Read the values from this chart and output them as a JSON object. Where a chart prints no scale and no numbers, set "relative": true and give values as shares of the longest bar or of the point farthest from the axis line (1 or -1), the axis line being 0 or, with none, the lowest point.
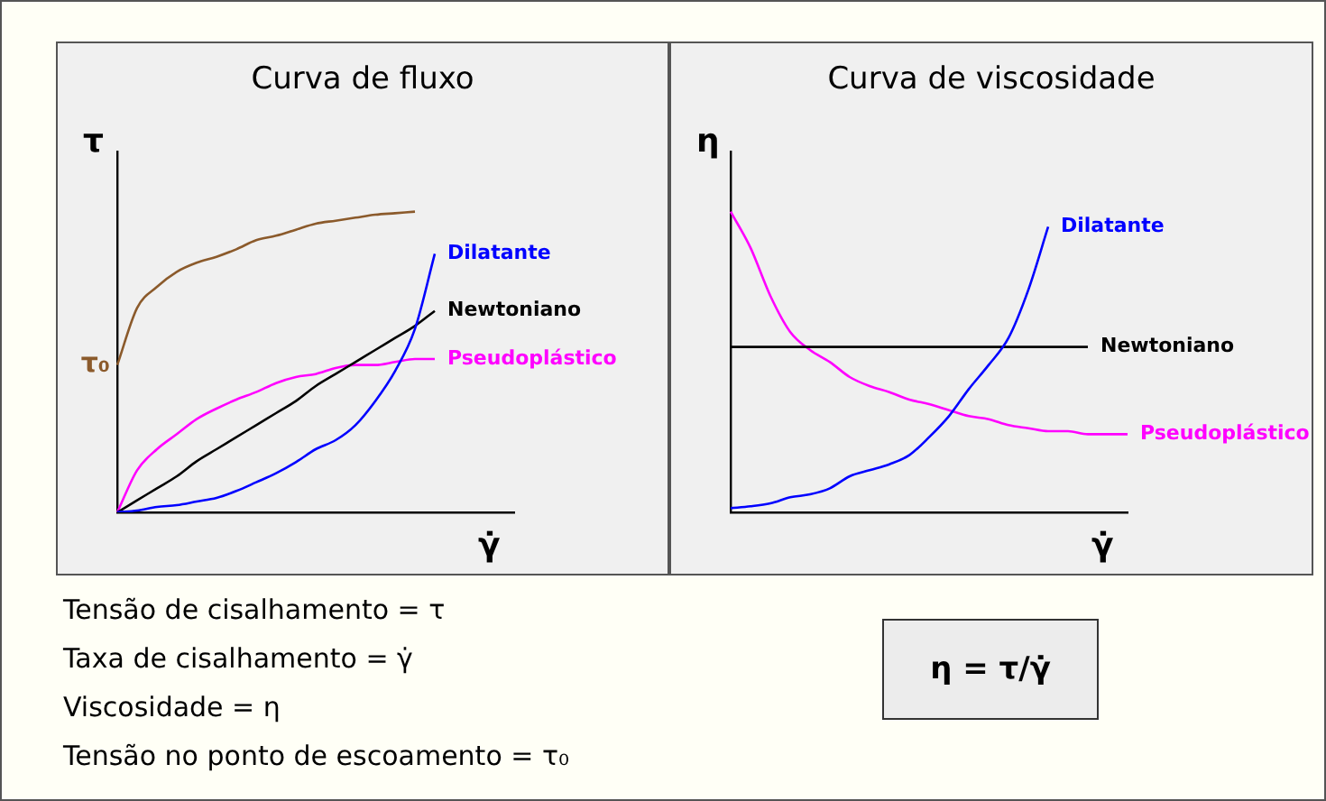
{
  "chart_data": [
    {
      "type": "line",
      "title": "Curva de fluxo",
      "ylabel": "τ",
      "xlabel": "γ̇",
      "relative": true,
      "legend": false,
      "tick_labels": false,
      "grid": false,
      "annotations": [
        "τ₀"
      ],
      "categories": [
        null,
        null,
        null,
        null,
        null,
        null,
        null,
        null,
        null,
        null,
        null,
        null,
        null,
        null,
        null,
        null,
        null,
        null,
        null,
        null,
        null
      ],
      "series": [
        {
          "color": "#8b5a2b",
          "values": [
            0.49,
            0.68,
            0.75,
            0.8,
            0.83,
            0.85,
            0.875,
            0.905,
            0.92,
            0.94,
            0.96,
            0.97,
            0.98,
            0.99,
            0.995,
            1.0,
            null,
            null,
            null,
            null,
            null
          ]
        },
        {
          "name": "Dilatante",
          "color": "#0000ff",
          "values": [
            0,
            0.006,
            0.018,
            0.024,
            0.036,
            0.048,
            0.071,
            0.1,
            0.13,
            0.167,
            0.21,
            0.24,
            0.29,
            0.37,
            0.47,
            0.61,
            0.86,
            null,
            null,
            null,
            null
          ]
        },
        {
          "name": "Newtoniano",
          "color": "#000000",
          "values": [
            0,
            0.04,
            0.08,
            0.12,
            0.17,
            0.21,
            0.25,
            0.29,
            0.33,
            0.37,
            0.42,
            0.46,
            0.5,
            0.54,
            0.58,
            0.62,
            0.67,
            null,
            null,
            null,
            null
          ]
        },
        {
          "name": "Pseudoplástico",
          "color": "#ff00ff",
          "values": [
            0,
            0.14,
            0.21,
            0.26,
            0.31,
            0.345,
            0.375,
            0.4,
            0.43,
            0.45,
            0.46,
            0.48,
            0.49,
            0.49,
            0.5,
            0.51,
            0.51,
            null,
            null,
            null,
            null
          ]
        }
      ]
    },
    {
      "type": "line",
      "title": "Curva de viscosidade",
      "ylabel": "η",
      "xlabel": "γ̇",
      "relative": true,
      "legend": false,
      "tick_labels": false,
      "grid": false,
      "categories": [
        null,
        null,
        null,
        null,
        null,
        null,
        null,
        null,
        null,
        null,
        null,
        null,
        null,
        null,
        null,
        null,
        null,
        null,
        null,
        null,
        null
      ],
      "series": [
        {
          "name": "Dilatante",
          "color": "#0000ff",
          "values": [
            0.014,
            0.02,
            0.03,
            0.05,
            0.06,
            0.08,
            0.12,
            0.14,
            0.16,
            0.19,
            0.25,
            0.32,
            0.41,
            0.49,
            0.58,
            0.74,
            0.95,
            null,
            null,
            null,
            null
          ]
        },
        {
          "name": "Newtoniano",
          "color": "#000000",
          "values": [
            0.55,
            0.55,
            0.55,
            0.55,
            0.55,
            0.55,
            0.55,
            0.55,
            0.55,
            0.55,
            0.55,
            0.55,
            0.55,
            0.55,
            0.55,
            0.55,
            0.55,
            0.55,
            0.55,
            null,
            null
          ]
        },
        {
          "name": "Pseudoplástico",
          "color": "#ff00ff",
          "values": [
            1.0,
            0.88,
            0.72,
            0.6,
            0.54,
            0.5,
            0.45,
            0.42,
            0.4,
            0.375,
            0.36,
            0.34,
            0.32,
            0.31,
            0.29,
            0.28,
            0.27,
            0.27,
            0.26,
            0.26,
            0.26
          ]
        }
      ]
    },
    {
      "type": "other",
      "annotations": [
        "Tensão de cisalhamento = τ",
        "Taxa de cisalhamento = γ̇",
        "Viscosidade = η",
        "Tensão no ponto de escoamento = τ₀",
        "η = τ/γ̇"
      ]
    }
  ]
}
